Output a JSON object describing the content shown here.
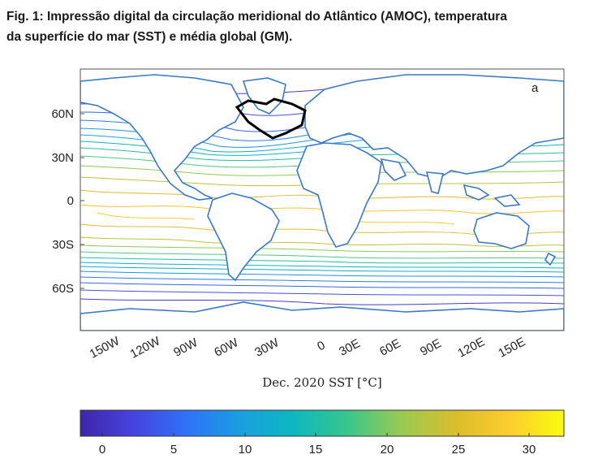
{
  "figure": {
    "caption_line1": "Fig. 1: Impressão digital da circulação meridional do Atlântico (AMOC), temperatura",
    "caption_line2": "da superfície do mar (SST) e média global (GM).",
    "panel_label": "a"
  },
  "map": {
    "lat_ticks": [
      "60N",
      "30N",
      "0",
      "30S",
      "60S"
    ],
    "lon_ticks": [
      "150W",
      "120W",
      "90W",
      "60W",
      "30W",
      "0",
      "30E",
      "60E",
      "90E",
      "120E",
      "150E"
    ],
    "xlabel": "Dec. 2020 SST [°C]",
    "colorbar": {
      "ticks": [
        "0",
        "5",
        "10",
        "15",
        "20",
        "25",
        "30"
      ],
      "range": [
        -2,
        32
      ],
      "colors": [
        "#3e26a8",
        "#4743e0",
        "#2e72f8",
        "#1b9ee0",
        "#0cb8c0",
        "#37c68c",
        "#96cb53",
        "#dcbd2b",
        "#fcce2e",
        "#f9fb0e"
      ]
    }
  }
}
